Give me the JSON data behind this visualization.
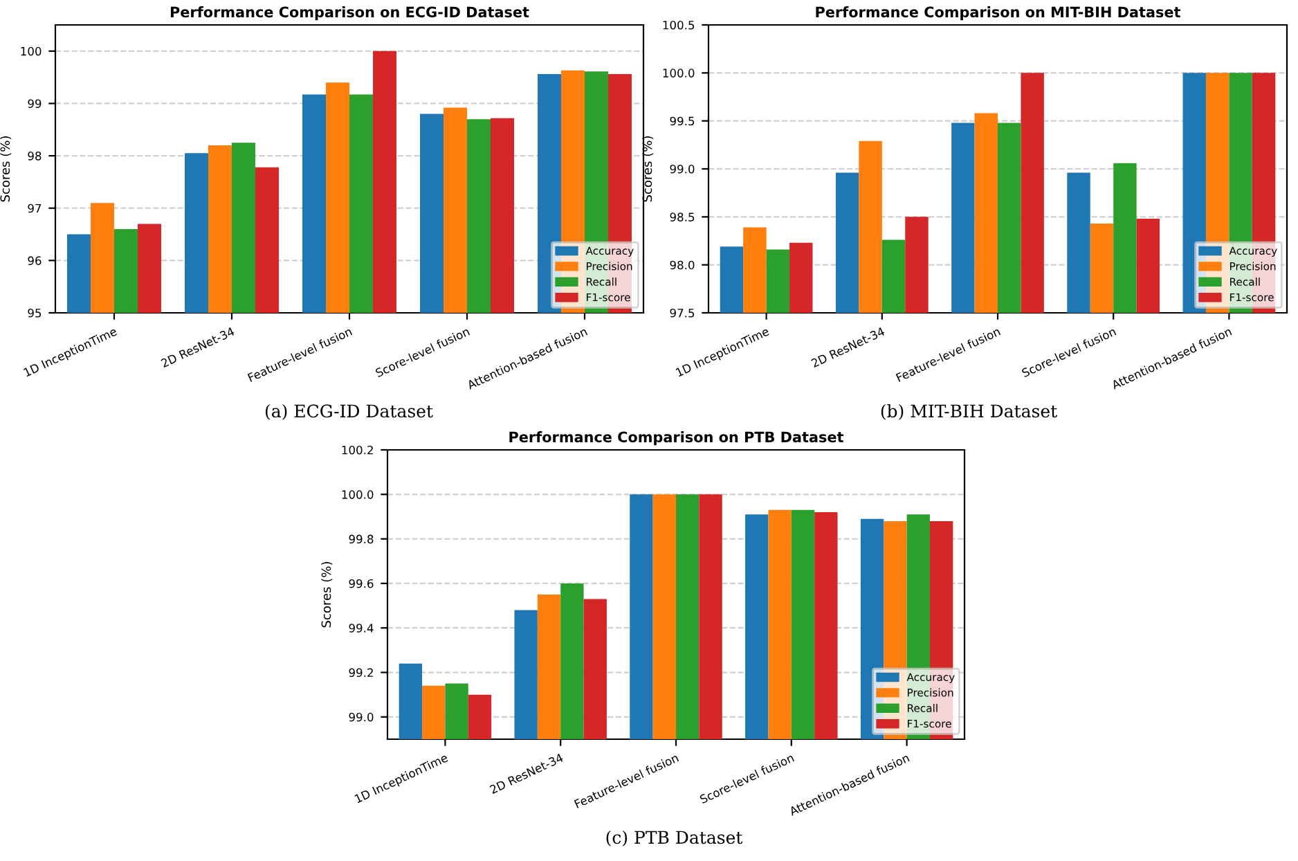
{
  "chart_data": [
    {
      "type": "bar",
      "title": "Performance Comparison on ECG-ID Dataset",
      "ylabel": "Scores (%)",
      "annotations": [
        "(a) ECG-ID Dataset"
      ],
      "categories": [
        "1D InceptionTime",
        "2D ResNet-34",
        "Feature-level fusion",
        "Score-level fusion",
        "Attention-based fusion"
      ],
      "series": [
        {
          "name": "Accuracy",
          "color": "#1f77b4",
          "values": [
            96.5,
            98.05,
            99.17,
            98.8,
            99.56
          ]
        },
        {
          "name": "Precision",
          "color": "#ff7f0e",
          "values": [
            97.1,
            98.2,
            99.4,
            98.92,
            99.63
          ]
        },
        {
          "name": "Recall",
          "color": "#2ca02c",
          "values": [
            96.6,
            98.25,
            99.17,
            98.7,
            99.61
          ]
        },
        {
          "name": "F1-score",
          "color": "#d62728",
          "values": [
            96.7,
            97.78,
            100.0,
            98.72,
            99.56
          ]
        }
      ],
      "ylim": [
        95,
        100.5
      ],
      "yticks": [
        95,
        96,
        97,
        98,
        99,
        100
      ],
      "grid": "y",
      "legend": "bottom right"
    },
    {
      "type": "bar",
      "title": "Performance Comparison on MIT-BIH Dataset",
      "ylabel": "Scores (%)",
      "annotations": [
        "(b) MIT-BIH Dataset"
      ],
      "categories": [
        "1D InceptionTime",
        "2D ResNet-34",
        "Feature-level fusion",
        "Score-level fusion",
        "Attention-based fusion"
      ],
      "series": [
        {
          "name": "Accuracy",
          "color": "#1f77b4",
          "values": [
            98.19,
            98.96,
            99.48,
            98.96,
            100.0
          ]
        },
        {
          "name": "Precision",
          "color": "#ff7f0e",
          "values": [
            98.39,
            99.29,
            99.58,
            98.43,
            100.0
          ]
        },
        {
          "name": "Recall",
          "color": "#2ca02c",
          "values": [
            98.16,
            98.26,
            99.48,
            99.06,
            100.0
          ]
        },
        {
          "name": "F1-score",
          "color": "#d62728",
          "values": [
            98.23,
            98.5,
            100.0,
            98.48,
            100.0
          ]
        }
      ],
      "ylim": [
        97.5,
        100.5
      ],
      "yticks": [
        97.5,
        {
          "value": 98,
          "label": "98.0"
        },
        98.5,
        {
          "value": 99,
          "label": "99.0"
        },
        99.5,
        {
          "value": 100,
          "label": "100.0"
        },
        100.5
      ],
      "grid": "y",
      "legend": "bottom right"
    },
    {
      "type": "bar",
      "title": "Performance Comparison on PTB Dataset",
      "ylabel": "Scores (%)",
      "annotations": [
        "(c) PTB Dataset"
      ],
      "categories": [
        "1D InceptionTime",
        "2D ResNet-34",
        "Feature-level fusion",
        "Score-level fusion",
        "Attention-based fusion"
      ],
      "series": [
        {
          "name": "Accuracy",
          "color": "#1f77b4",
          "values": [
            99.24,
            99.48,
            100.0,
            99.91,
            99.89
          ]
        },
        {
          "name": "Precision",
          "color": "#ff7f0e",
          "values": [
            99.14,
            99.55,
            100.0,
            99.93,
            99.88
          ]
        },
        {
          "name": "Recall",
          "color": "#2ca02c",
          "values": [
            99.15,
            99.6,
            100.0,
            99.93,
            99.91
          ]
        },
        {
          "name": "F1-score",
          "color": "#d62728",
          "values": [
            99.1,
            99.53,
            100.0,
            99.92,
            99.88
          ]
        }
      ],
      "ylim": [
        98.9,
        100.2
      ],
      "yticks": [
        {
          "value": 99,
          "label": "99.0"
        },
        99.2,
        99.4,
        99.6,
        99.8,
        {
          "value": 100,
          "label": "100.0"
        },
        100.2
      ],
      "grid": "y",
      "legend": "bottom right"
    }
  ]
}
